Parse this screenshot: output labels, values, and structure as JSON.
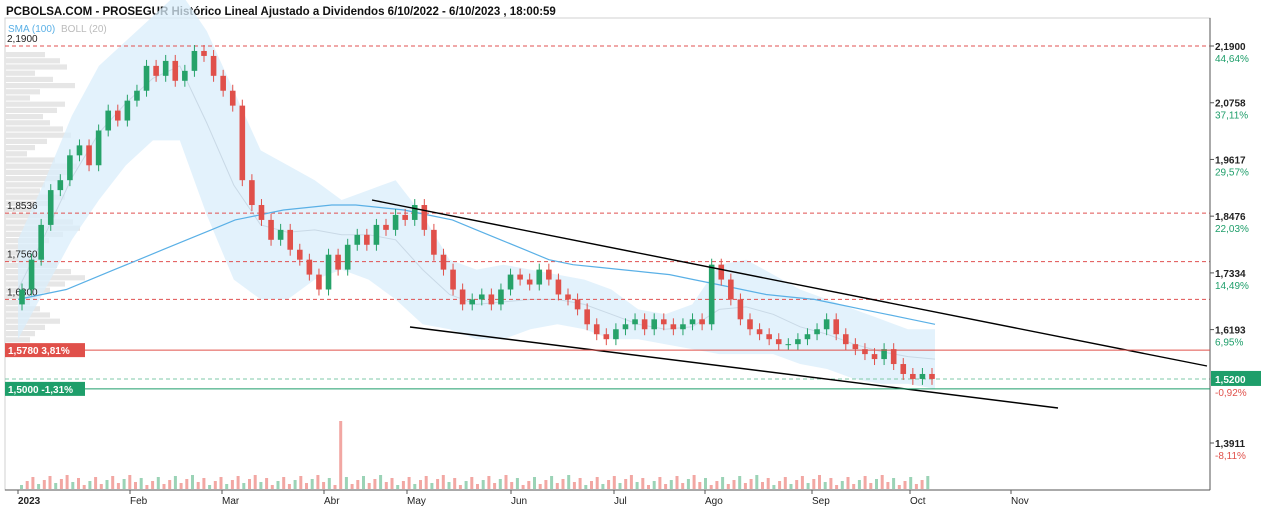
{
  "header": {
    "title": "PCBOLSA.COM - PROSEGUR Histórico Lineal Ajustado a Dividendos 6/10/2022 - 6/10/2023 , 18:00:59",
    "legend_sma": "SMA (100)",
    "legend_boll": "BOLL (20)"
  },
  "colors": {
    "up": "#26a269",
    "down": "#e0504a",
    "sma": "#5ab0e6",
    "band_fill": "#d9eefb",
    "resistance": "#e05050",
    "support": "#1e9e6a"
  },
  "chart_data": {
    "type": "candlestick",
    "ylim": [
      1.372,
      2.215
    ],
    "right_ticks": [
      {
        "price": "2,1900",
        "pct": "44,64%",
        "pct_color": "#1e9e6a"
      },
      {
        "price": "2,0758",
        "pct": "37,11%",
        "pct_color": "#1e9e6a"
      },
      {
        "price": "1,9617",
        "pct": "29,57%",
        "pct_color": "#1e9e6a"
      },
      {
        "price": "1,8476",
        "pct": "22,03%",
        "pct_color": "#1e9e6a"
      },
      {
        "price": "1,7334",
        "pct": "14,49%",
        "pct_color": "#1e9e6a"
      },
      {
        "price": "1,6193",
        "pct": "6,95%",
        "pct_color": "#1e9e6a"
      },
      {
        "price": "1,3911",
        "pct": "-8,11%",
        "pct_color": "#e0504a"
      }
    ],
    "current_price": "1,5200",
    "current_pct": "-0,92%",
    "levels": [
      {
        "label": "2,1900",
        "value": 2.19
      },
      {
        "label": "1,8536",
        "value": 1.8536
      },
      {
        "label": "1,7560",
        "value": 1.756
      },
      {
        "label": "1,6800",
        "value": 1.68
      }
    ],
    "badges": [
      {
        "text": "1,5780  3,81%",
        "value": 1.578,
        "color": "#e0504a"
      },
      {
        "text": "1,5000  -1,31%",
        "value": 1.5,
        "color": "#1e9e6a"
      }
    ],
    "months": [
      "2023",
      "Feb",
      "Mar",
      "Abr",
      "May",
      "Jun",
      "Jul",
      "Ago",
      "Sep",
      "Oct",
      "Nov"
    ],
    "closes": [
      1.7,
      1.76,
      1.83,
      1.9,
      1.92,
      1.97,
      1.99,
      1.95,
      2.02,
      2.06,
      2.04,
      2.08,
      2.1,
      2.15,
      2.13,
      2.16,
      2.12,
      2.14,
      2.18,
      2.17,
      2.13,
      2.1,
      2.07,
      1.92,
      1.87,
      1.84,
      1.8,
      1.82,
      1.78,
      1.76,
      1.73,
      1.7,
      1.77,
      1.74,
      1.79,
      1.81,
      1.79,
      1.83,
      1.82,
      1.85,
      1.84,
      1.87,
      1.82,
      1.77,
      1.74,
      1.7,
      1.67,
      1.68,
      1.69,
      1.67,
      1.7,
      1.73,
      1.72,
      1.71,
      1.74,
      1.72,
      1.69,
      1.68,
      1.66,
      1.63,
      1.61,
      1.6,
      1.62,
      1.63,
      1.64,
      1.62,
      1.64,
      1.63,
      1.62,
      1.63,
      1.64,
      1.63,
      1.75,
      1.72,
      1.68,
      1.64,
      1.62,
      1.61,
      1.6,
      1.59,
      1.59,
      1.6,
      1.61,
      1.62,
      1.64,
      1.61,
      1.59,
      1.58,
      1.57,
      1.56,
      1.58,
      1.55,
      1.53,
      1.52,
      1.53,
      1.52
    ],
    "opens": [
      1.67,
      1.7,
      1.76,
      1.83,
      1.9,
      1.92,
      1.97,
      1.99,
      1.95,
      2.02,
      2.06,
      2.04,
      2.08,
      2.1,
      2.15,
      2.13,
      2.16,
      2.12,
      2.14,
      2.18,
      2.17,
      2.13,
      2.1,
      2.07,
      1.92,
      1.87,
      1.84,
      1.8,
      1.82,
      1.78,
      1.76,
      1.73,
      1.7,
      1.77,
      1.74,
      1.79,
      1.81,
      1.79,
      1.83,
      1.82,
      1.85,
      1.84,
      1.87,
      1.82,
      1.77,
      1.74,
      1.7,
      1.67,
      1.68,
      1.69,
      1.67,
      1.7,
      1.73,
      1.72,
      1.71,
      1.74,
      1.72,
      1.69,
      1.68,
      1.66,
      1.63,
      1.61,
      1.6,
      1.62,
      1.63,
      1.64,
      1.62,
      1.64,
      1.63,
      1.62,
      1.63,
      1.64,
      1.63,
      1.75,
      1.72,
      1.68,
      1.64,
      1.62,
      1.61,
      1.6,
      1.59,
      1.59,
      1.6,
      1.61,
      1.62,
      1.64,
      1.61,
      1.59,
      1.58,
      1.57,
      1.56,
      1.58,
      1.55,
      1.53,
      1.52,
      1.53
    ],
    "sma": [
      1.68,
      1.69,
      1.7,
      1.72,
      1.74,
      1.76,
      1.78,
      1.8,
      1.82,
      1.84,
      1.85,
      1.86,
      1.865,
      1.87,
      1.87,
      1.865,
      1.86,
      1.85,
      1.84,
      1.82,
      1.8,
      1.78,
      1.76,
      1.75,
      1.745,
      1.74,
      1.735,
      1.73,
      1.72,
      1.71,
      1.7,
      1.69,
      1.685,
      1.68,
      1.67,
      1.66,
      1.65,
      1.64,
      1.63
    ],
    "boll_upper": [
      1.8,
      1.92,
      2.05,
      2.15,
      2.2,
      2.25,
      2.3,
      2.22,
      2.1,
      1.98,
      1.95,
      1.92,
      1.88,
      1.9,
      1.92,
      1.85,
      1.76,
      1.74,
      1.75,
      1.74,
      1.73,
      1.72,
      1.7,
      1.66,
      1.65,
      1.67,
      1.75,
      1.76,
      1.73,
      1.7,
      1.68,
      1.66,
      1.64,
      1.62,
      1.62
    ],
    "boll_lower": [
      1.6,
      1.7,
      1.8,
      1.88,
      1.95,
      2.0,
      2.0,
      1.85,
      1.72,
      1.68,
      1.68,
      1.72,
      1.74,
      1.72,
      1.68,
      1.63,
      1.62,
      1.6,
      1.6,
      1.62,
      1.63,
      1.62,
      1.6,
      1.6,
      1.59,
      1.58,
      1.57,
      1.57,
      1.57,
      1.55,
      1.54,
      1.52,
      1.51,
      1.51,
      1.5
    ]
  }
}
